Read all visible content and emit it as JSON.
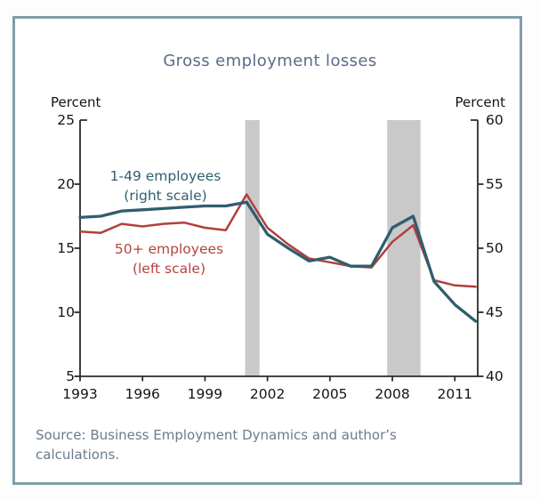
{
  "title": "Gross employment losses",
  "axes": {
    "left_unit_label": "Percent",
    "right_unit_label": "Percent"
  },
  "legend": [
    {
      "line1": "1-49 employees",
      "line2": "(right scale)",
      "color": "#2f5f70"
    },
    {
      "line1": "50+ employees",
      "line2": "(left scale)",
      "color": "#b5443f"
    }
  ],
  "source": {
    "line1": "Source: Business Employment Dynamics and author’s",
    "line2": "calculations."
  },
  "colors": {
    "frame_border": "#7e9ea9",
    "title_text": "#5b6b8b",
    "source_text": "#6b7c8d",
    "axis": "#2b2b2b",
    "recession_shading": "#c9c9c9",
    "series_small_firms": "#2f5e6e",
    "series_large_firms": "#b23f3c"
  },
  "chart_data": {
    "type": "line",
    "title": "Gross employment losses",
    "xlabel": "",
    "ylabel_left": "Percent",
    "ylabel_right": "Percent",
    "xlim": [
      1993,
      2012.1
    ],
    "left_ylim": [
      5,
      25
    ],
    "right_ylim": [
      40,
      60
    ],
    "left_ticks": [
      25,
      20,
      15,
      10,
      5
    ],
    "right_ticks": [
      60,
      55,
      50,
      45,
      40
    ],
    "x_ticks": [
      1993,
      1996,
      1999,
      2002,
      2005,
      2008,
      2011
    ],
    "grid": false,
    "legend_position": "inline-labels",
    "x": [
      1993,
      1994,
      1995,
      1996,
      1997,
      1998,
      1999,
      2000,
      2001,
      2002,
      2003,
      2004,
      2005,
      2006,
      2007,
      2008,
      2009,
      2010,
      2011,
      2012
    ],
    "series": [
      {
        "name": "1-49 employees (right scale)",
        "axis": "right",
        "color": "#2f5e6e",
        "stroke_width": 3.3,
        "values": [
          52.4,
          52.5,
          52.9,
          53.0,
          53.1,
          53.2,
          53.3,
          53.3,
          53.6,
          51.1,
          50.0,
          49.0,
          49.3,
          48.6,
          48.6,
          51.6,
          52.5,
          47.4,
          45.6,
          44.3
        ]
      },
      {
        "name": "50+ employees (left scale)",
        "axis": "left",
        "color": "#b23f3c",
        "stroke_width": 2.5,
        "values": [
          16.3,
          16.2,
          16.9,
          16.7,
          16.9,
          17.0,
          16.6,
          16.4,
          19.2,
          16.6,
          15.3,
          14.2,
          13.9,
          13.6,
          13.5,
          15.5,
          16.8,
          12.5,
          12.1,
          12.0
        ]
      }
    ],
    "shaded_regions": [
      {
        "label": "recession-2001",
        "start": 2000.93,
        "end": 2001.62
      },
      {
        "label": "recession-2008-09",
        "start": 2007.75,
        "end": 2009.35
      }
    ]
  }
}
